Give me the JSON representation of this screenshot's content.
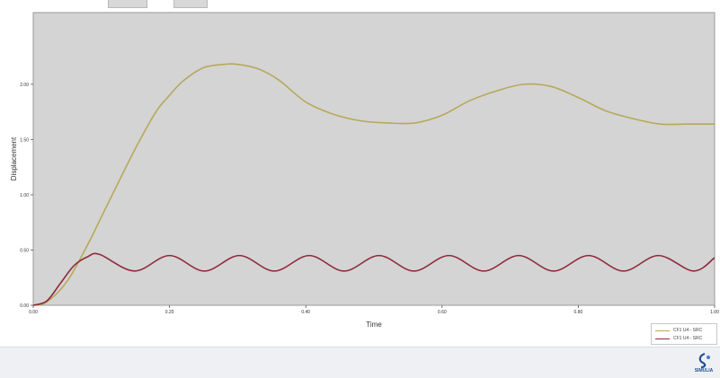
{
  "chart_data": {
    "type": "line",
    "title": "",
    "xlabel": "Time",
    "ylabel": "Displacement",
    "xlim": [
      0,
      1
    ],
    "ylim": [
      0,
      2
    ],
    "x_ticks": [
      0,
      0.2,
      0.4,
      0.6,
      0.8,
      1.0
    ],
    "x_tick_labels": [
      "0.00",
      "0.20",
      "0.40",
      "0.60",
      "0.80",
      "1.00"
    ],
    "y_ticks": [
      0,
      0.5,
      1.0,
      1.5,
      2.0
    ],
    "y_tick_labels": [
      "0.00",
      "0.50",
      "1.00",
      "1.50",
      "2.00"
    ],
    "grid": false,
    "legend_position": "bottom-right",
    "series": [
      {
        "name": "CF1 U4 - SRC",
        "color": "#b6a95a",
        "x": [
          0,
          0.02,
          0.05,
          0.08,
          0.1,
          0.12,
          0.15,
          0.18,
          0.2,
          0.22,
          0.25,
          0.28,
          0.3,
          0.33,
          0.36,
          0.4,
          0.44,
          0.48,
          0.52,
          0.56,
          0.6,
          0.64,
          0.68,
          0.72,
          0.76,
          0.8,
          0.84,
          0.88,
          0.92,
          0.96,
          1.0
        ],
        "y": [
          0,
          0.03,
          0.22,
          0.55,
          0.8,
          1.05,
          1.42,
          1.75,
          1.9,
          2.03,
          2.15,
          2.18,
          2.18,
          2.14,
          2.04,
          1.84,
          1.73,
          1.67,
          1.65,
          1.65,
          1.72,
          1.85,
          1.94,
          2.0,
          1.98,
          1.88,
          1.76,
          1.69,
          1.64,
          1.64,
          1.64
        ]
      },
      {
        "name": "CF1 U4 - SRC",
        "color": "#8e2a3c",
        "x": [
          0,
          0.02,
          0.04,
          0.06,
          0.08,
          0.0975,
          0.14875,
          0.2,
          0.25125,
          0.3025,
          0.35375,
          0.405,
          0.45625,
          0.5075,
          0.55875,
          0.61,
          0.66125,
          0.7125,
          0.76375,
          0.815,
          0.86625,
          0.9175,
          0.96875,
          1.0
        ],
        "y": [
          0,
          0.04,
          0.2,
          0.36,
          0.44,
          0.46,
          0.31,
          0.45,
          0.31,
          0.45,
          0.31,
          0.45,
          0.31,
          0.45,
          0.31,
          0.45,
          0.31,
          0.45,
          0.31,
          0.45,
          0.31,
          0.45,
          0.31,
          0.43
        ]
      }
    ]
  },
  "logo": {
    "text": "SIMULIA"
  }
}
